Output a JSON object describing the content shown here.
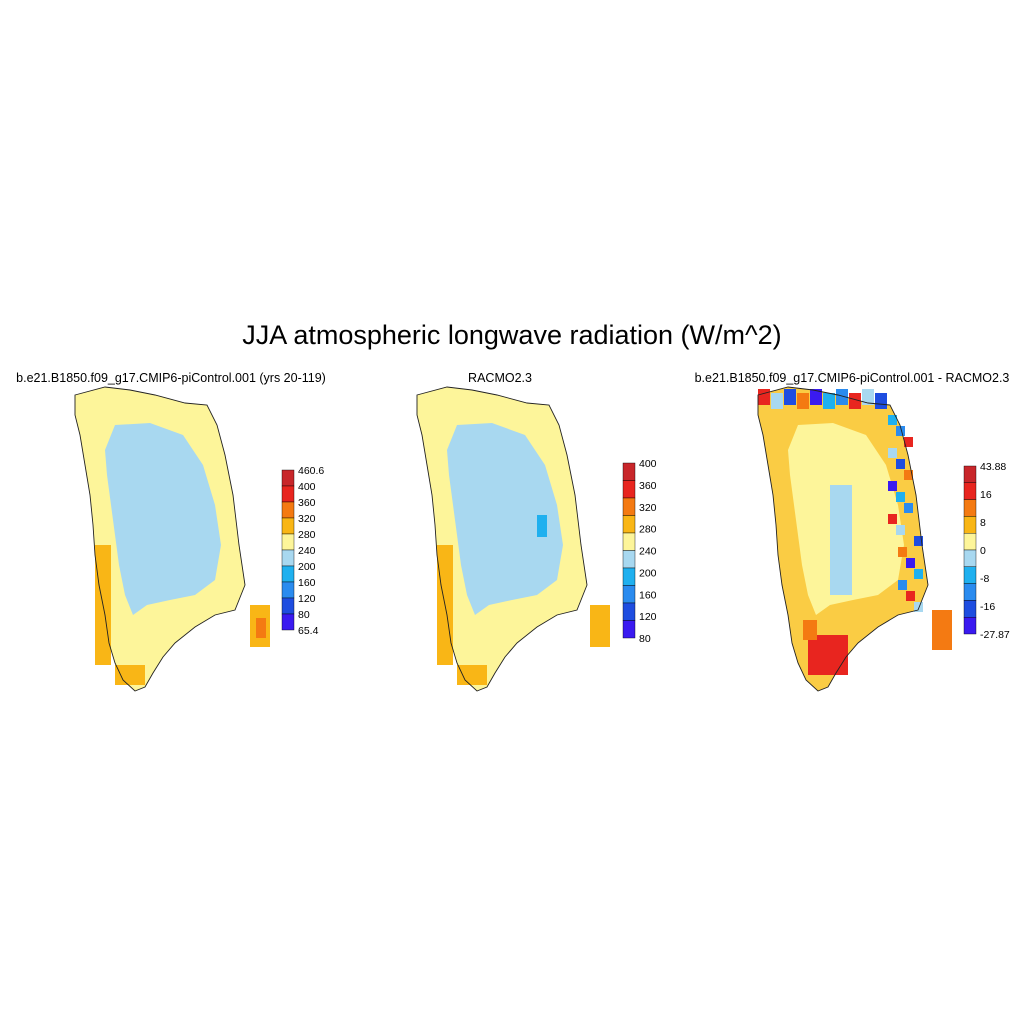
{
  "figure": {
    "title": "JJA atmospheric longwave radiation (W/m^2)"
  },
  "chart_data": [
    {
      "type": "heatmap",
      "title": "b.e21.B1850.f09_g17.CMIP6-piControl.001 (yrs 20-119)",
      "colorbar": {
        "labels": [
          "460.6",
          "400",
          "360",
          "320",
          "280",
          "240",
          "200",
          "160",
          "120",
          "80",
          "65.4"
        ],
        "colors": [
          "#c8262a",
          "#e8251f",
          "#f47a12",
          "#f9b616",
          "#fdf59a",
          "#a8d8f0",
          "#1fb0ef",
          "#2a8bef",
          "#1e4de0",
          "#3a1af0"
        ]
      },
      "regions": {
        "interior": 220,
        "margin": 260,
        "southwest_coast": 300,
        "svalbard_point": 330
      }
    },
    {
      "type": "heatmap",
      "title": "RACMO2.3",
      "colorbar": {
        "labels": [
          "400",
          "360",
          "320",
          "280",
          "240",
          "200",
          "160",
          "120",
          "80"
        ],
        "colors": [
          "#c8262a",
          "#e8251f",
          "#f47a12",
          "#f9b616",
          "#fdf59a",
          "#a8d8f0",
          "#1fb0ef",
          "#2a8bef",
          "#1e4de0",
          "#3a1af0"
        ]
      },
      "regions": {
        "interior": 220,
        "margin": 260,
        "southwest_coast": 300,
        "east_patch": 180
      }
    },
    {
      "type": "heatmap",
      "title": "b.e21.B1850.f09_g17.CMIP6-piControl.001 - RACMO2.3",
      "colorbar": {
        "labels": [
          "43.88",
          "16",
          "8",
          "0",
          "-8",
          "-16",
          "-27.87"
        ],
        "colors": [
          "#c8262a",
          "#e8251f",
          "#f47a12",
          "#f9b616",
          "#fdf59a",
          "#a8d8f0",
          "#1fb0ef",
          "#2a8bef",
          "#1e4de0",
          "#3a1af0"
        ]
      },
      "regions": {
        "interior": 2,
        "center_band": -2,
        "south": 20,
        "southwest": 30,
        "east_coast_mix": "mixed"
      }
    }
  ]
}
